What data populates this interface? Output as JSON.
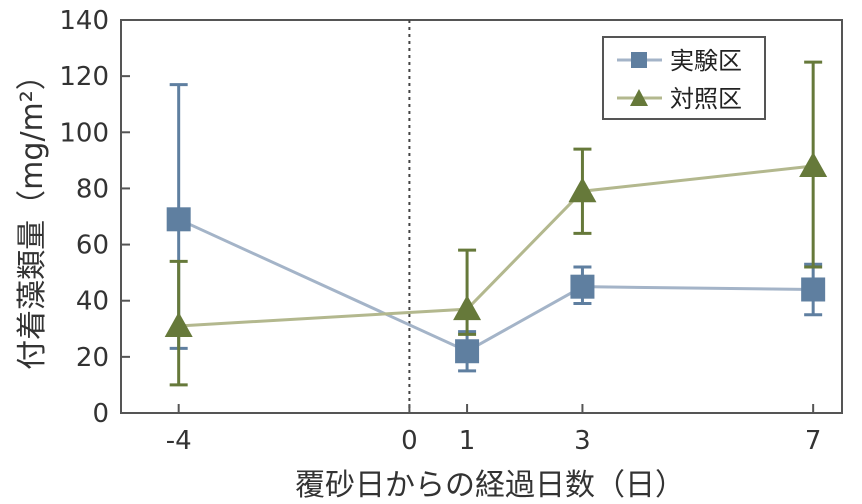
{
  "chart_data": {
    "type": "line",
    "xlabel": "覆砂日からの経過日数（日）",
    "ylabel": "付着藻類量（mg/m²）",
    "xlim": [
      -5,
      7.5
    ],
    "ylim": [
      0,
      140
    ],
    "x_ticks": [
      -4,
      0,
      1,
      3,
      7
    ],
    "x_tick_labels": [
      "-4",
      "0",
      "1",
      "3",
      "7"
    ],
    "y_ticks": [
      0,
      20,
      40,
      60,
      80,
      100,
      120,
      140
    ],
    "y_tick_labels": [
      "0",
      "20",
      "40",
      "60",
      "80",
      "100",
      "120",
      "140"
    ],
    "reference_line_x": 0,
    "legend_position": "top-right",
    "series": [
      {
        "name": "実験区",
        "marker": "square",
        "color": "#5f7fa0",
        "line_color": "#a4b4c8",
        "x": [
          -4,
          1,
          3,
          7
        ],
        "y": [
          69,
          22,
          45,
          44
        ],
        "err_low": [
          23,
          15,
          39,
          35
        ],
        "err_high": [
          117,
          29,
          52,
          53
        ]
      },
      {
        "name": "対照区",
        "marker": "triangle",
        "color": "#66793a",
        "line_color": "#b3b88e",
        "x": [
          -4,
          1,
          3,
          7
        ],
        "y": [
          31,
          37,
          79,
          88
        ],
        "err_low": [
          10,
          28,
          64,
          52
        ],
        "err_high": [
          54,
          58,
          94,
          125
        ]
      }
    ]
  }
}
